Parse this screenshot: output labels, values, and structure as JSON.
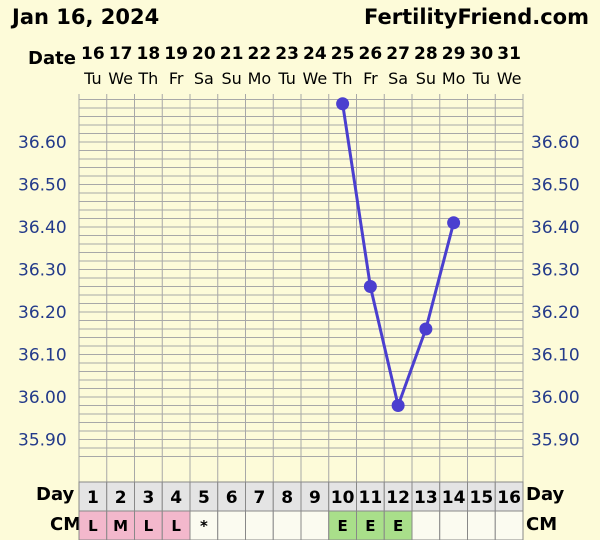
{
  "header": {
    "date_text": "Jan 16, 2024",
    "site_text": "FertilityFriend.com"
  },
  "chart_data": {
    "type": "line",
    "title": "",
    "xlabel": "Date",
    "ylabel": "",
    "dates": [
      "16",
      "17",
      "18",
      "19",
      "20",
      "21",
      "22",
      "23",
      "24",
      "25",
      "26",
      "27",
      "28",
      "29",
      "30",
      "31"
    ],
    "weekdays": [
      "Tu",
      "We",
      "Th",
      "Fr",
      "Sa",
      "Su",
      "Mo",
      "Tu",
      "We",
      "Th",
      "Fr",
      "Sa",
      "Su",
      "Mo",
      "Tu",
      "We"
    ],
    "cycle_days": [
      "1",
      "2",
      "3",
      "4",
      "5",
      "6",
      "7",
      "8",
      "9",
      "10",
      "11",
      "12",
      "13",
      "14",
      "15",
      "16"
    ],
    "y_ticks": [
      "36.60",
      "36.50",
      "36.40",
      "36.30",
      "36.20",
      "36.10",
      "36.00",
      "35.90"
    ],
    "ylim": [
      35.85,
      36.7
    ],
    "series": [
      {
        "points": [
          {
            "date": "25",
            "value": 36.69
          },
          {
            "date": "26",
            "value": 36.26
          },
          {
            "date": "27",
            "value": 35.98
          },
          {
            "date": "28",
            "value": 36.16
          },
          {
            "date": "29",
            "value": 36.41
          }
        ]
      }
    ],
    "grid": true,
    "rows": {
      "day_label": "Day",
      "cm_label": "CM",
      "cm_values": [
        "L",
        "M",
        "L",
        "L",
        "*",
        "",
        "",
        "",
        "",
        "E",
        "E",
        "E",
        "",
        "",
        "",
        ""
      ]
    },
    "colors": {
      "line": "#4b3fcf",
      "grid": "#a8a8a8",
      "background": "#fdfbd9",
      "cm_L_M": "#f3b8cc",
      "cm_E": "#a9df8a",
      "ytick": "#233a8a"
    }
  }
}
